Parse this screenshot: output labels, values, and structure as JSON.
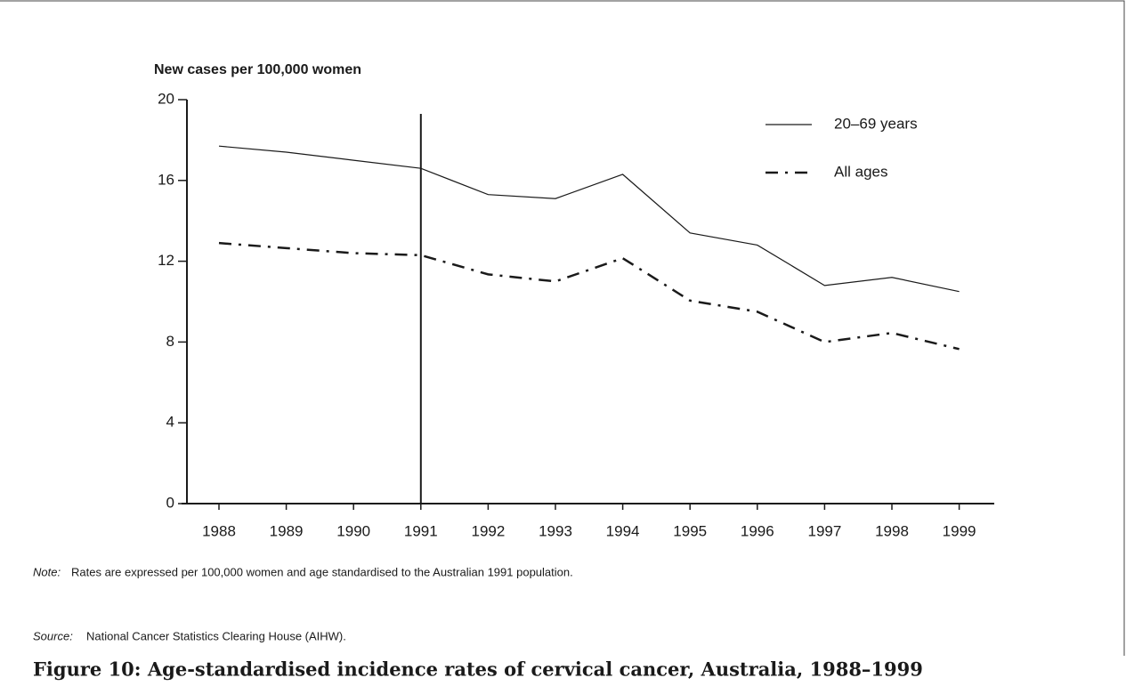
{
  "chart_data": {
    "type": "line",
    "y_label": "New cases per 100,000 women",
    "categories": [
      "1988",
      "1989",
      "1990",
      "1991",
      "1992",
      "1993",
      "1994",
      "1995",
      "1996",
      "1997",
      "1998",
      "1999"
    ],
    "series": [
      {
        "name": "20–69 years",
        "color": "#1a1a1a",
        "dash": "solid",
        "values": [
          17.7,
          17.4,
          17.0,
          16.6,
          15.3,
          15.1,
          16.3,
          13.4,
          12.8,
          10.8,
          11.2,
          10.5
        ]
      },
      {
        "name": "All ages",
        "color": "#1a1a1a",
        "dash": "dashdot",
        "values": [
          12.9,
          12.65,
          12.4,
          12.3,
          11.35,
          11.0,
          12.15,
          10.05,
          9.5,
          8.0,
          8.45,
          7.65
        ]
      }
    ],
    "ylim": [
      0,
      20
    ],
    "yticks": [
      0,
      4,
      8,
      12,
      16,
      20
    ],
    "vline_at": "1991",
    "note_label": "Note:",
    "note": "Rates are expressed per 100,000 women and age standardised to the Australian 1991 population.",
    "source_label": "Source:",
    "source": "National Cancer Statistics Clearing House (AIHW).",
    "caption": "Figure 10: Age-standardised incidence rates of cervical cancer, Australia, 1988–1999"
  }
}
